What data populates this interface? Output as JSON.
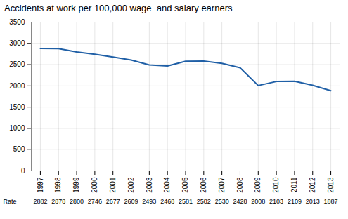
{
  "chart_data": {
    "type": "line",
    "title": "Accidents at work per 100,000 wage  and salary earners",
    "x": [
      1997,
      1998,
      1999,
      2000,
      2001,
      2002,
      2003,
      2004,
      2005,
      2006,
      2007,
      2008,
      2009,
      2010,
      2011,
      2012,
      2013
    ],
    "values": [
      2882,
      2878,
      2800,
      2746,
      2677,
      2609,
      2493,
      2468,
      2581,
      2582,
      2530,
      2428,
      2008,
      2103,
      2109,
      2013,
      1887
    ],
    "color": "#1f5fa6",
    "xlim": [
      1996.5,
      2013.5
    ],
    "xticks": [
      1997,
      1998,
      1999,
      2000,
      2001,
      2002,
      2003,
      2004,
      2005,
      2006,
      2007,
      2008,
      2009,
      2010,
      2011,
      2012,
      2013
    ],
    "ylim": [
      0,
      3500
    ],
    "yticks": [
      0,
      500,
      1000,
      1500,
      2000,
      2500,
      3000,
      3500
    ],
    "grid": true,
    "data_labels": true,
    "annotations": [
      "Rate"
    ]
  }
}
